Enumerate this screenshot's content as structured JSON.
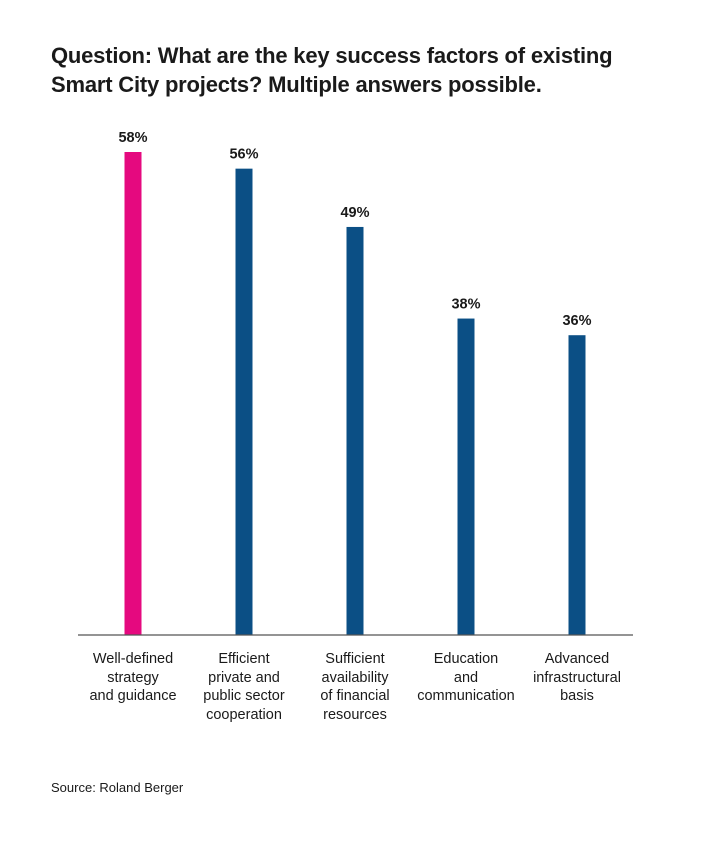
{
  "title": "Question: What are the key success factors of existing Smart City projects? Multiple answers possible.",
  "source": "Source: Roland Berger",
  "colors": {
    "highlight": "#e5097f",
    "default": "#0b4f85",
    "axis": "#555555",
    "text": "#1a1a1a"
  },
  "chart_data": {
    "type": "bar",
    "title": "Question: What are the key success factors of existing Smart City projects? Multiple answers possible.",
    "xlabel": "",
    "ylabel": "",
    "unit": "%",
    "ylim": [
      0,
      60
    ],
    "grid": false,
    "categories": [
      "Well-defined\nstrategy\nand guidance",
      "Efficient\nprivate and\npublic sector\ncooperation",
      "Sufficient\navailability\nof financial\nresources",
      "Education\nand\ncommunication",
      "Advanced\ninfrastructural\nbasis"
    ],
    "values": [
      58,
      56,
      49,
      38,
      36
    ],
    "value_labels": [
      "58%",
      "56%",
      "49%",
      "38%",
      "36%"
    ],
    "highlight_index": 0
  }
}
